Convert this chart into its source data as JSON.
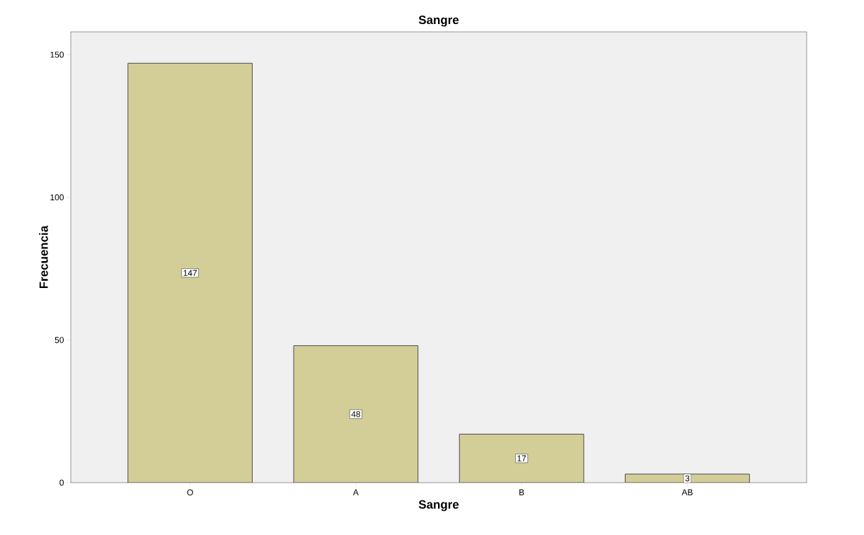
{
  "chart_data": {
    "type": "bar",
    "title": "Sangre",
    "xlabel": "Sangre",
    "ylabel": "Frecuencia",
    "categories": [
      "O",
      "A",
      "B",
      "AB"
    ],
    "values": [
      147,
      48,
      17,
      3
    ],
    "color": "#d3ce97",
    "ylim": [
      0,
      158
    ],
    "yticks": [
      0,
      50,
      100,
      150
    ],
    "data_labels": true,
    "grid": false
  }
}
